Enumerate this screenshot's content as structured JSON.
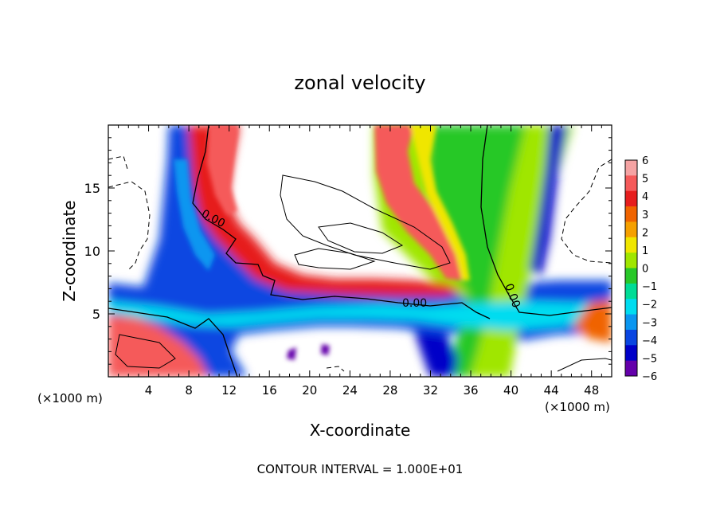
{
  "chart_data": {
    "type": "heatmap",
    "title": "zonal velocity",
    "xlabel": "X-coordinate",
    "ylabel": "Z-coordinate",
    "x_unit": "(×1000 m)",
    "z_unit": "(×1000 m)",
    "xlim": [
      0,
      50
    ],
    "ylim": [
      0,
      20
    ],
    "x_ticks": [
      "4",
      "8",
      "12",
      "16",
      "20",
      "24",
      "28",
      "32",
      "36",
      "40",
      "44",
      "48"
    ],
    "y_ticks": [
      "5",
      "10",
      "15"
    ],
    "colorbar": {
      "labels": [
        "6",
        "5",
        "4",
        "3",
        "2",
        "1",
        "0",
        "−1",
        "−2",
        "−3",
        "−4",
        "−5",
        "−6"
      ],
      "colors": [
        "#f5a3a3",
        "#f55a5a",
        "#e61e1e",
        "#f06400",
        "#f5a000",
        "#f0e600",
        "#a0e600",
        "#28c828",
        "#00dc96",
        "#00dcf0",
        "#0a96f0",
        "#0a46e1",
        "#0000c8",
        "#6400aa"
      ]
    },
    "contour_labels": [
      "0.00",
      "0.00",
      "0.00"
    ],
    "footer": "CONTOUR INTERVAL = 1.000E+01"
  }
}
